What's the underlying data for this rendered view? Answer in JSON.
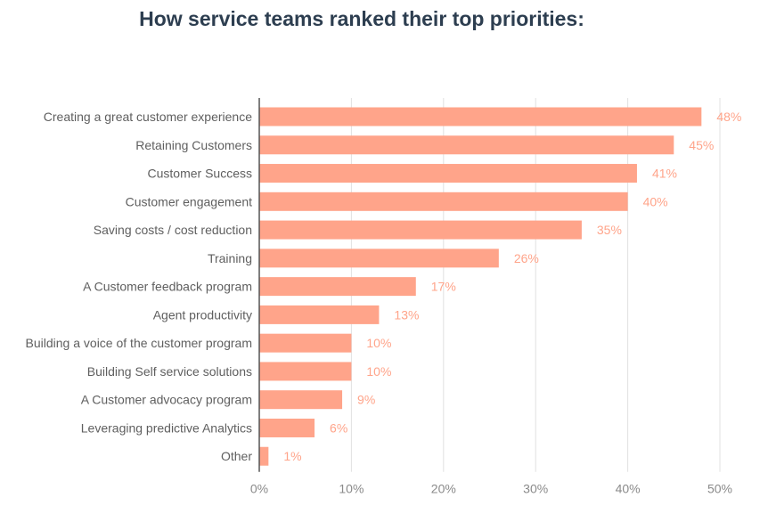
{
  "chart_data": {
    "type": "bar",
    "orientation": "horizontal",
    "title": "How service teams ranked their top priorities:",
    "categories": [
      "Creating a great customer experience",
      "Retaining Customers",
      "Customer Success",
      "Customer engagement",
      "Saving costs / cost reduction",
      "Training",
      "A Customer feedback program",
      "Agent productivity",
      "Building a voice of the customer program",
      "Building Self service solutions",
      "A Customer advocacy program",
      "Leveraging predictive Analytics",
      "Other"
    ],
    "values": [
      48,
      45,
      41,
      40,
      35,
      26,
      17,
      13,
      10,
      10,
      9,
      6,
      1
    ],
    "value_labels": [
      "48%",
      "45%",
      "41%",
      "40%",
      "35%",
      "26%",
      "17%",
      "13%",
      "10%",
      "10%",
      "9%",
      "6%",
      "1%"
    ],
    "xlim": [
      0,
      50
    ],
    "xticks": [
      0,
      10,
      20,
      30,
      40,
      50
    ],
    "xtick_labels": [
      "0%",
      "10%",
      "20%",
      "30%",
      "40%",
      "50%"
    ],
    "xlabel": "",
    "ylabel": "",
    "grid": true,
    "bar_color": "#ffa48a",
    "label_color": "#ffa48a"
  }
}
